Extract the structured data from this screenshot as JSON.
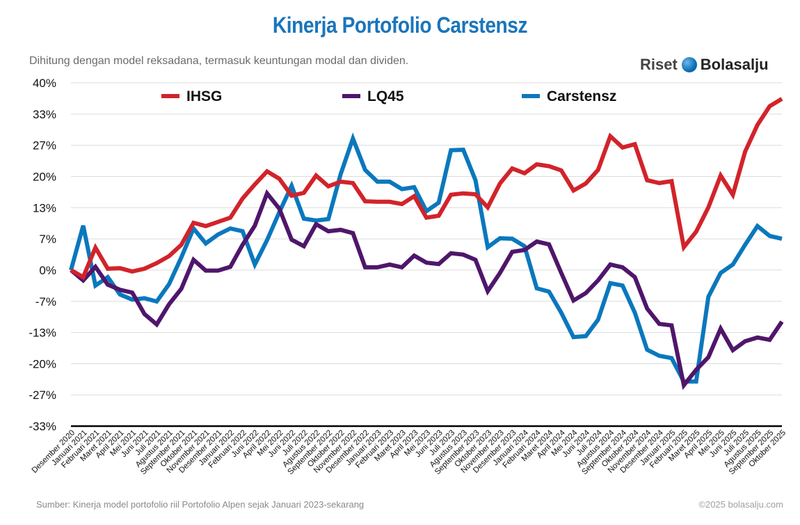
{
  "title": "Kinerja Portofolio Carstensz",
  "subtitle": "Dihitung dengan model reksadana, termasuk keuntungan modal dan dividen.",
  "logo": {
    "part1": "Riset",
    "part2": "Bolasalju"
  },
  "footer": {
    "source": "Sumber: Kinerja model portofolio riil Portofolio Alpen sejak Januari 2023-sekarang",
    "copyright": "©2025 bolasalju.com"
  },
  "chart_data": {
    "type": "line",
    "title": "Kinerja Portofolio Carstensz",
    "xlabel": "",
    "ylabel": "",
    "ylim": [
      -33.33,
      40
    ],
    "y_tick_values": [
      40,
      33.33,
      26.67,
      20,
      13.33,
      6.67,
      0,
      -6.67,
      -13.33,
      -20,
      -26.67,
      -33.33
    ],
    "y_tick_labels": [
      "40%",
      "33%",
      "27%",
      "20%",
      "13%",
      "7%",
      "0%",
      "-7%",
      "-13%",
      "-20%",
      "-27%",
      "-33%"
    ],
    "grid": true,
    "legend_position": "top",
    "categories": [
      "Desember 2020",
      "Januari 2021",
      "Februari 2021",
      "Maret 2021",
      "April 2021",
      "Mei 2021",
      "Juni 2021",
      "Juli 2021",
      "Agustus 2021",
      "September 2021",
      "Oktober 2021",
      "November 2021",
      "Desember 2021",
      "Januari 2022",
      "Februari 2022",
      "Juni 2022",
      "April 2022",
      "Mei 2022",
      "Juni 2022",
      "Juli 2022",
      "Agustus 2022",
      "September 2022",
      "Oktober 2022",
      "November 2022",
      "Desember 2022",
      "Januari 2023",
      "Februari 2023",
      "Maret 2023",
      "April 2023",
      "Mei 2023",
      "Juni 2023",
      "Juli 2023",
      "Agustus 2023",
      "September 2023",
      "Oktober 2023",
      "November 2023",
      "Desember 2023",
      "Januari 2024",
      "Februari 2024",
      "Maret 2024",
      "April 2024",
      "Mei 2024",
      "Juni 2024",
      "Juli 2024",
      "Agustus 2024",
      "September 2024",
      "Oktober 2024",
      "November 2024",
      "Desember 2024",
      "Januari 2025",
      "Februari 2025",
      "Maret 2025",
      "April 2025",
      "Mei 2025",
      "Juni 2025",
      "Juli 2025",
      "Agustus 2025",
      "September 2025",
      "Oktober 2025"
    ],
    "series": [
      {
        "name": "IHSG",
        "color": "#d2232a",
        "values": [
          0,
          -1.5,
          4.8,
          0.3,
          0.4,
          -0.3,
          0.3,
          1.5,
          3,
          5.4,
          10.1,
          9.4,
          10.3,
          11.2,
          15.3,
          18.3,
          21.1,
          19.5,
          15.9,
          16.5,
          20.2,
          17.9,
          18.9,
          18.6,
          14.7,
          14.6,
          14.6,
          14.1,
          15.8,
          11.2,
          11.6,
          16.1,
          16.4,
          16.2,
          13.4,
          18.5,
          21.7,
          20.7,
          22.6,
          22.2,
          21.3,
          17,
          18.5,
          21.4,
          28.6,
          26.2,
          26.9,
          19.2,
          18.6,
          19.0,
          4.9,
          8.2,
          13.4,
          20.2,
          16.1,
          25.3,
          31,
          35,
          36.6
        ]
      },
      {
        "name": "LQ45",
        "color": "#4f166b",
        "values": [
          0,
          -2.2,
          0.7,
          -3.1,
          -4.2,
          -4.8,
          -9.4,
          -11.6,
          -7.3,
          -4,
          2.2,
          -0.1,
          -0.1,
          0.7,
          5.4,
          9.5,
          16.4,
          13.1,
          6.5,
          5.1,
          9.8,
          8.3,
          8.6,
          7.9,
          0.6,
          0.6,
          1.2,
          0.6,
          3.1,
          1.6,
          1.3,
          3.6,
          3.3,
          2.2,
          -4.5,
          -0.6,
          3.9,
          4.3,
          6.1,
          5.5,
          -0.6,
          -6.5,
          -4.9,
          -2.2,
          1.2,
          0.6,
          -1.5,
          -8.2,
          -11.5,
          -11.8,
          -24.6,
          -21.3,
          -18.6,
          -12.5,
          -17.1,
          -15.2,
          -14.4,
          -14.9,
          -11
        ]
      },
      {
        "name": "Carstensz",
        "color": "#0a78bd",
        "values": [
          0,
          9.5,
          -3.3,
          -1.5,
          -5.2,
          -6.3,
          -6,
          -6.7,
          -3,
          2.7,
          8.9,
          5.7,
          7.6,
          8.9,
          8.3,
          1.2,
          6.4,
          12.4,
          18,
          11,
          10.6,
          10.9,
          20.5,
          28.1,
          21.4,
          18.9,
          18.9,
          17.3,
          17.7,
          12.6,
          14.4,
          25.6,
          25.7,
          19.2,
          4.9,
          6.8,
          6.7,
          5.1,
          -3.9,
          -4.6,
          -9.1,
          -14.3,
          -14.1,
          -10.6,
          -2.8,
          -3.3,
          -9.1,
          -17,
          -18.3,
          -18.8,
          -23.8,
          -23.8,
          -5.7,
          -0.6,
          1.2,
          5.4,
          9.4,
          7.3,
          6.7
        ]
      }
    ]
  }
}
